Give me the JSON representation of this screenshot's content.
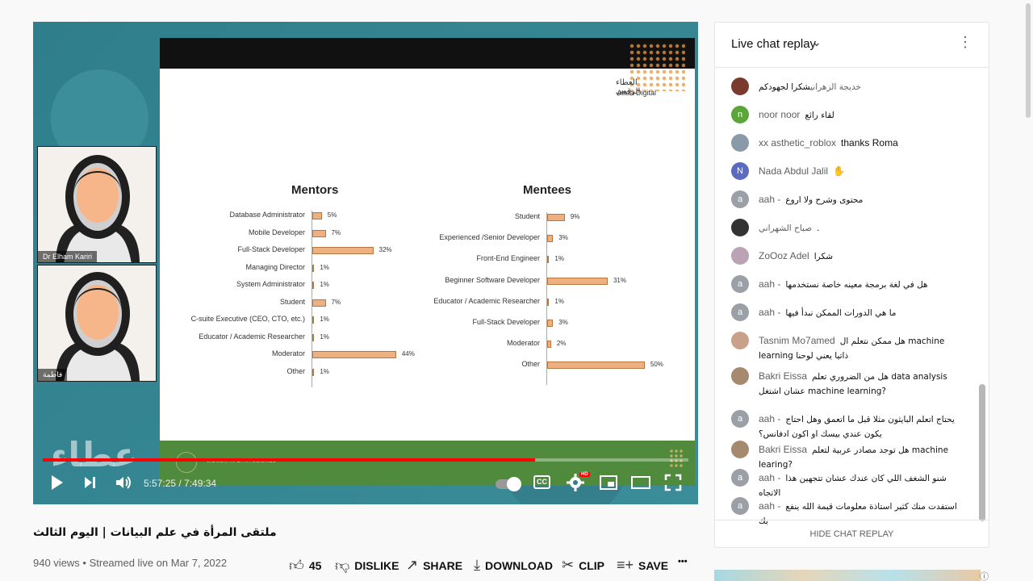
{
  "video": {
    "speaker1_name": "Dr Elham Kariri",
    "speaker2_name": "فاطمة",
    "watermark": "عطاء",
    "slide": {
      "logo_ar": "العطاء الرقمي",
      "logo_en": "Attaa Digital",
      "footer_text": "WOMEN IN DATA SCIENCE"
    },
    "time_current": "5:57:25",
    "time_total": "7:49:34",
    "time_display": "5:57:25 / 7:49:34",
    "progress": 0.762,
    "cc_label": "CC",
    "hd_label": "HD"
  },
  "chart_data": [
    {
      "type": "bar",
      "orientation": "horizontal",
      "title": "Mentors",
      "categories": [
        "Database Administrator",
        "Mobile Developer",
        "Full-Stack Developer",
        "Managing Director",
        "System Administrator",
        "Student",
        "C-suite Executive (CEO, CTO, etc.)",
        "Educator / Academic Researcher",
        "Moderator",
        "Other"
      ],
      "values": [
        5,
        7,
        32,
        1,
        1,
        7,
        1,
        1,
        44,
        1
      ],
      "value_labels": [
        "5%",
        "7%",
        "32%",
        "1%",
        "1%",
        "7%",
        "1%",
        "1%",
        "44%",
        "1%"
      ],
      "xlim": [
        0,
        50
      ],
      "bar_color": "#edb080"
    },
    {
      "type": "bar",
      "orientation": "horizontal",
      "title": "Mentees",
      "categories": [
        "Student",
        "Experienced /Senior Developer",
        "Front-End Engineer",
        "Beginner Software Developer",
        "Educator / Academic Researcher",
        "Full-Stack Developer",
        "Moderator",
        "Other"
      ],
      "values": [
        9,
        3,
        1,
        31,
        1,
        3,
        2,
        50
      ],
      "value_labels": [
        "9%",
        "3%",
        "1%",
        "31%",
        "1%",
        "3%",
        "2%",
        "50%"
      ],
      "xlim": [
        0,
        55
      ],
      "bar_color": "#edb080"
    }
  ],
  "below": {
    "title": "ملتقى المرأة في علم البيانات | اليوم الثالث",
    "meta": "940 views • Streamed live on Mar 7, 2022",
    "like_count": "45",
    "dislike": "DISLIKE",
    "share": "SHARE",
    "download": "DOWNLOAD",
    "clip": "CLIP",
    "save": "SAVE",
    "more": "•••"
  },
  "chat": {
    "title": "Live chat replay",
    "hide": "HIDE CHAT REPLAY",
    "messages": [
      {
        "author": "خديجة الزهراني",
        "text": "شكرا لجهودكم",
        "avatar": "",
        "color": "#7a3b2e"
      },
      {
        "author": "noor noor",
        "text": "لقاء رائع",
        "avatar": "n",
        "color": "#5aa63a"
      },
      {
        "author": "xx asthetic_roblox",
        "text": "thanks Roma",
        "avatar": "",
        "color": "#8a9aa8"
      },
      {
        "author": "Nada Abdul Jalil",
        "text": "✋",
        "avatar": "N",
        "color": "#5c6bc0"
      },
      {
        "author": "aah -",
        "text": "محتوى وشرح ولا اروع",
        "avatar": "a",
        "color": "#9aa0a6"
      },
      {
        "author": "صباح الشهراني",
        "text": ".",
        "avatar": "",
        "color": "#333333"
      },
      {
        "author": "ZoOoz Adel",
        "text": "شكرا",
        "avatar": "",
        "color": "#b9a3b5"
      },
      {
        "author": "aah -",
        "text": "هل في لغة برمجة معينه خاصة نستخدمها",
        "avatar": "a",
        "color": "#9aa0a6"
      },
      {
        "author": "aah -",
        "text": "ما هي الدورات الممكن نبدأ فيها",
        "avatar": "a",
        "color": "#9aa0a6"
      },
      {
        "author": "Tasnim Mo7amed",
        "text": "هل ممكن نتعلم ال machine learning ذاتيا يعني لوحنا",
        "avatar": "",
        "color": "#c9a08a"
      },
      {
        "author": "Bakri Eissa",
        "text": "هل من الضروري تعلم data analysis عشان اشتغل machine learning?",
        "avatar": "",
        "color": "#a58a6f"
      },
      {
        "author": "aah -",
        "text": "يحتاج اتعلم البايثون مثلا قبل ما اتعمق وهل احتاج يكون عندي بيسك او اكون ادفانس؟",
        "avatar": "a",
        "color": "#9aa0a6"
      },
      {
        "author": "Bakri Eissa",
        "text": "هل توجد مصادر عربية لتعلم machine learing?",
        "avatar": "",
        "color": "#a58a6f"
      },
      {
        "author": "aah -",
        "text": "شنو الشغف اللي كان عندك عشان تتجهين هذا الاتجاه",
        "avatar": "a",
        "color": "#9aa0a6"
      },
      {
        "author": "aah -",
        "text": "استفدت منك كثير استاذة معلومات قيمة الله ينفع بك",
        "avatar": "a",
        "color": "#9aa0a6"
      }
    ]
  }
}
